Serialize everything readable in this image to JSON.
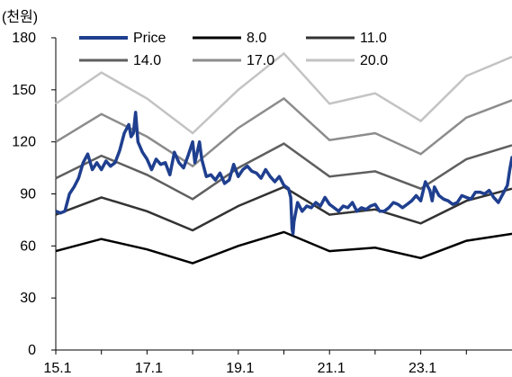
{
  "chart_data": {
    "type": "line",
    "unit_label": "(천원)",
    "xlabel": "",
    "ylabel": "",
    "xlim": [
      2015.0,
      2025.0
    ],
    "ylim": [
      0,
      180
    ],
    "y_ticks": [
      0,
      30,
      60,
      90,
      120,
      150,
      180
    ],
    "x_ticks": [
      {
        "x": 2015.0,
        "label": "15.1"
      },
      {
        "x": 2017.0,
        "label": "17.1"
      },
      {
        "x": 2019.0,
        "label": "19.1"
      },
      {
        "x": 2021.0,
        "label": "21.1"
      },
      {
        "x": 2023.0,
        "label": "23.1"
      }
    ],
    "grid": false,
    "legend_position": "top",
    "series": [
      {
        "name": "Price",
        "color": "#1f3f8f",
        "points": [
          [
            2015.0,
            80
          ],
          [
            2015.1,
            79
          ],
          [
            2015.2,
            80
          ],
          [
            2015.3,
            90
          ],
          [
            2015.4,
            94
          ],
          [
            2015.5,
            99
          ],
          [
            2015.6,
            108
          ],
          [
            2015.7,
            113
          ],
          [
            2015.8,
            104
          ],
          [
            2015.9,
            108
          ],
          [
            2016.0,
            104
          ],
          [
            2016.1,
            109
          ],
          [
            2016.2,
            106
          ],
          [
            2016.3,
            108
          ],
          [
            2016.4,
            115
          ],
          [
            2016.5,
            125
          ],
          [
            2016.6,
            130
          ],
          [
            2016.65,
            123
          ],
          [
            2016.7,
            125
          ],
          [
            2016.75,
            137
          ],
          [
            2016.8,
            120
          ],
          [
            2016.9,
            114
          ],
          [
            2017.0,
            110
          ],
          [
            2017.1,
            104
          ],
          [
            2017.2,
            110
          ],
          [
            2017.3,
            107
          ],
          [
            2017.4,
            108
          ],
          [
            2017.5,
            101
          ],
          [
            2017.6,
            114
          ],
          [
            2017.7,
            108
          ],
          [
            2017.8,
            105
          ],
          [
            2017.9,
            112
          ],
          [
            2018.0,
            120
          ],
          [
            2018.05,
            108
          ],
          [
            2018.1,
            114
          ],
          [
            2018.15,
            120
          ],
          [
            2018.2,
            110
          ],
          [
            2018.3,
            100
          ],
          [
            2018.4,
            101
          ],
          [
            2018.5,
            98
          ],
          [
            2018.6,
            102
          ],
          [
            2018.7,
            96
          ],
          [
            2018.8,
            98
          ],
          [
            2018.9,
            107
          ],
          [
            2019.0,
            100
          ],
          [
            2019.1,
            104
          ],
          [
            2019.2,
            106
          ],
          [
            2019.3,
            103
          ],
          [
            2019.4,
            102
          ],
          [
            2019.5,
            99
          ],
          [
            2019.6,
            104
          ],
          [
            2019.7,
            100
          ],
          [
            2019.8,
            97
          ],
          [
            2019.9,
            100
          ],
          [
            2020.0,
            95
          ],
          [
            2020.1,
            93
          ],
          [
            2020.15,
            88
          ],
          [
            2020.18,
            70
          ],
          [
            2020.2,
            67
          ],
          [
            2020.22,
            74
          ],
          [
            2020.3,
            85
          ],
          [
            2020.4,
            80
          ],
          [
            2020.5,
            83
          ],
          [
            2020.6,
            82
          ],
          [
            2020.7,
            85
          ],
          [
            2020.8,
            83
          ],
          [
            2020.9,
            88
          ],
          [
            2021.0,
            84
          ],
          [
            2021.1,
            82
          ],
          [
            2021.2,
            80
          ],
          [
            2021.3,
            83
          ],
          [
            2021.4,
            82
          ],
          [
            2021.5,
            85
          ],
          [
            2021.6,
            80
          ],
          [
            2021.7,
            82
          ],
          [
            2021.8,
            81
          ],
          [
            2021.9,
            83
          ],
          [
            2022.0,
            84
          ],
          [
            2022.1,
            80
          ],
          [
            2022.2,
            80
          ],
          [
            2022.3,
            82
          ],
          [
            2022.4,
            85
          ],
          [
            2022.5,
            84
          ],
          [
            2022.6,
            82
          ],
          [
            2022.7,
            84
          ],
          [
            2022.8,
            86
          ],
          [
            2022.9,
            89
          ],
          [
            2023.0,
            86
          ],
          [
            2023.1,
            97
          ],
          [
            2023.2,
            92
          ],
          [
            2023.25,
            86
          ],
          [
            2023.3,
            94
          ],
          [
            2023.4,
            89
          ],
          [
            2023.5,
            87
          ],
          [
            2023.6,
            86
          ],
          [
            2023.7,
            84
          ],
          [
            2023.8,
            85
          ],
          [
            2023.9,
            89
          ],
          [
            2024.0,
            88
          ],
          [
            2024.1,
            87
          ],
          [
            2024.2,
            91
          ],
          [
            2024.3,
            91
          ],
          [
            2024.4,
            90
          ],
          [
            2024.5,
            92
          ],
          [
            2024.6,
            88
          ],
          [
            2024.7,
            85
          ],
          [
            2024.8,
            90
          ],
          [
            2024.9,
            95
          ],
          [
            2024.95,
            104
          ],
          [
            2025.0,
            111
          ],
          [
            2025.05,
            109
          ],
          [
            2025.1,
            102
          ]
        ]
      },
      {
        "name": "8.0",
        "color": "#000000",
        "points": [
          [
            2015.0,
            57
          ],
          [
            2016.0,
            64
          ],
          [
            2017.0,
            58
          ],
          [
            2018.0,
            50
          ],
          [
            2019.0,
            60
          ],
          [
            2020.0,
            68
          ],
          [
            2021.0,
            57
          ],
          [
            2022.0,
            59
          ],
          [
            2023.0,
            53
          ],
          [
            2024.0,
            63
          ],
          [
            2025.0,
            67
          ]
        ]
      },
      {
        "name": "11.0",
        "color": "#333333",
        "points": [
          [
            2015.0,
            78
          ],
          [
            2016.0,
            88
          ],
          [
            2017.0,
            80
          ],
          [
            2018.0,
            69
          ],
          [
            2019.0,
            83
          ],
          [
            2020.0,
            94
          ],
          [
            2021.0,
            78
          ],
          [
            2022.0,
            81
          ],
          [
            2023.0,
            73
          ],
          [
            2024.0,
            86
          ],
          [
            2025.0,
            93
          ]
        ]
      },
      {
        "name": "14.0",
        "color": "#5f5f5f",
        "points": [
          [
            2015.0,
            99
          ],
          [
            2016.0,
            112
          ],
          [
            2017.0,
            101
          ],
          [
            2018.0,
            87
          ],
          [
            2019.0,
            105
          ],
          [
            2020.0,
            119
          ],
          [
            2021.0,
            100
          ],
          [
            2022.0,
            103
          ],
          [
            2023.0,
            93
          ],
          [
            2024.0,
            110
          ],
          [
            2025.0,
            118
          ]
        ]
      },
      {
        "name": "17.0",
        "color": "#8c8c8c",
        "points": [
          [
            2015.0,
            120
          ],
          [
            2016.0,
            136
          ],
          [
            2017.0,
            123
          ],
          [
            2018.0,
            106
          ],
          [
            2019.0,
            128
          ],
          [
            2020.0,
            145
          ],
          [
            2021.0,
            121
          ],
          [
            2022.0,
            125
          ],
          [
            2023.0,
            113
          ],
          [
            2024.0,
            134
          ],
          [
            2025.0,
            144
          ]
        ]
      },
      {
        "name": "20.0",
        "color": "#c3c3c3",
        "points": [
          [
            2015.0,
            142
          ],
          [
            2016.0,
            160
          ],
          [
            2017.0,
            145
          ],
          [
            2018.0,
            125
          ],
          [
            2019.0,
            150
          ],
          [
            2020.0,
            171
          ],
          [
            2021.0,
            142
          ],
          [
            2022.0,
            148
          ],
          [
            2023.0,
            132
          ],
          [
            2024.0,
            158
          ],
          [
            2025.0,
            169
          ]
        ]
      }
    ]
  }
}
